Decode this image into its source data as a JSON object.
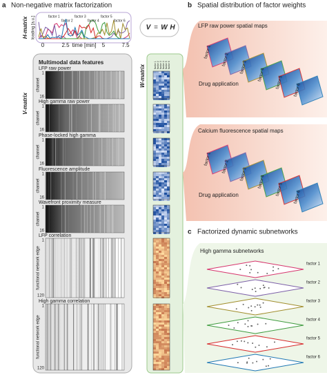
{
  "panel_a": {
    "letter": "a",
    "title": "Non-negative matrix factorization",
    "h_matrix": {
      "label": "H-matrix",
      "y_label": "loading [a.u.]",
      "x_ticks": [
        "0",
        "2.5",
        "5",
        "7.5"
      ],
      "x_label": "time [min]",
      "factors": [
        "factor 1",
        "factor 2",
        "factor 3",
        "factor 4",
        "factor 5",
        "factor 6"
      ]
    },
    "equation": {
      "v": "V",
      "eq": "=",
      "w": "W",
      "h": "H"
    },
    "v_matrix": {
      "label": "V-matrix",
      "title": "Multimodal data features",
      "features": [
        {
          "name": "LFP raw power",
          "axis": "channel",
          "start": "1",
          "end": "16"
        },
        {
          "name": "High gamma raw power",
          "axis": "channel",
          "start": "1",
          "end": "16"
        },
        {
          "name": "Phase-locked high gamma",
          "axis": "channel",
          "start": "1",
          "end": "16"
        },
        {
          "name": "Fluorescence amplitude",
          "axis": "channel",
          "start": "1",
          "end": "16"
        },
        {
          "name": "Wavefront proximity measure",
          "axis": "channel",
          "start": "1",
          "end": "16"
        },
        {
          "name": "LFP correlation",
          "axis": "functional network edge",
          "start": "1",
          "end": "120"
        },
        {
          "name": "High gamma correlation",
          "axis": "functional network edge",
          "start": "1",
          "end": "120"
        }
      ]
    }
  },
  "w_matrix": {
    "label": "W-matrix"
  },
  "panel_b": {
    "letter": "b",
    "title": "Spatial distribution of factor weights",
    "lfp": {
      "title": "LFP raw power spatial maps",
      "drug": "Drug application",
      "factors": [
        "factor 1",
        "factor 2",
        "factor 3",
        "factor 4",
        "factor 5",
        "factor 6"
      ]
    },
    "calcium": {
      "title": "Calcium fluorescence spatial maps",
      "drug": "Drug application",
      "factors": [
        "factor 1",
        "factor 2",
        "factor 3",
        "factor 4",
        "factor 5",
        "factor 6"
      ]
    }
  },
  "panel_c": {
    "letter": "c",
    "title": "Factorized dynamic subnetworks",
    "subtitle": "High gamma subnetworks",
    "factors": [
      "factor 1",
      "factor 2",
      "factor 3",
      "factor 4",
      "factor 5",
      "factor 6"
    ]
  }
}
